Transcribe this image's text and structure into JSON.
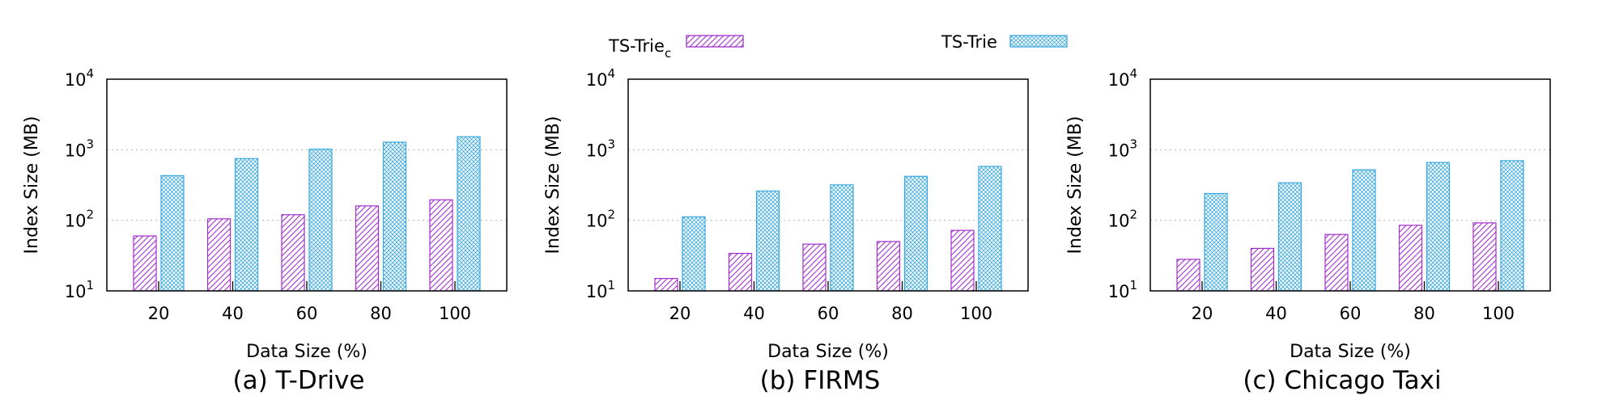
{
  "legend": {
    "items": [
      {
        "label": "TS-Trie",
        "subscript": "c",
        "pattern": "hatch",
        "color": "#a02fce"
      },
      {
        "label": "TS-Trie",
        "subscript": "",
        "pattern": "crosshatch",
        "color": "#38a8e0"
      }
    ],
    "placement": "top-center"
  },
  "chart_data": [
    {
      "type": "bar",
      "caption": "(a) T-Drive",
      "xlabel": "Data Size (%)",
      "ylabel": "Index Size (MB)",
      "yscale": "log",
      "ylim": [
        10,
        10000
      ],
      "yticks": [
        {
          "value": 10,
          "base": "10",
          "exp": "1"
        },
        {
          "value": 100,
          "base": "10",
          "exp": "2"
        },
        {
          "value": 1000,
          "base": "10",
          "exp": "3"
        },
        {
          "value": 10000,
          "base": "10",
          "exp": "4"
        }
      ],
      "grid": "y",
      "categories": [
        "20",
        "40",
        "60",
        "80",
        "100"
      ],
      "series": [
        {
          "name": "TS-Triec",
          "values": [
            60,
            105,
            120,
            160,
            195
          ]
        },
        {
          "name": "TS-Trie",
          "values": [
            430,
            750,
            1020,
            1280,
            1530
          ]
        }
      ]
    },
    {
      "type": "bar",
      "caption": "(b) FIRMS",
      "xlabel": "Data Size (%)",
      "ylabel": "Index Size (MB)",
      "yscale": "log",
      "ylim": [
        10,
        10000
      ],
      "yticks": [
        {
          "value": 10,
          "base": "10",
          "exp": "1"
        },
        {
          "value": 100,
          "base": "10",
          "exp": "2"
        },
        {
          "value": 1000,
          "base": "10",
          "exp": "3"
        },
        {
          "value": 10000,
          "base": "10",
          "exp": "4"
        }
      ],
      "grid": "y",
      "categories": [
        "20",
        "40",
        "60",
        "80",
        "100"
      ],
      "series": [
        {
          "name": "TS-Triec",
          "values": [
            15,
            34,
            46,
            50,
            72
          ]
        },
        {
          "name": "TS-Trie",
          "values": [
            112,
            260,
            318,
            420,
            580
          ]
        }
      ]
    },
    {
      "type": "bar",
      "caption": "(c) Chicago Taxi",
      "xlabel": "Data Size (%)",
      "ylabel": "Index Size (MB)",
      "yscale": "log",
      "ylim": [
        10,
        10000
      ],
      "yticks": [
        {
          "value": 10,
          "base": "10",
          "exp": "1"
        },
        {
          "value": 100,
          "base": "10",
          "exp": "2"
        },
        {
          "value": 1000,
          "base": "10",
          "exp": "3"
        },
        {
          "value": 10000,
          "base": "10",
          "exp": "4"
        }
      ],
      "grid": "y",
      "categories": [
        "20",
        "40",
        "60",
        "80",
        "100"
      ],
      "series": [
        {
          "name": "TS-Triec",
          "values": [
            28,
            40,
            63,
            85,
            92
          ]
        },
        {
          "name": "TS-Trie",
          "values": [
            240,
            340,
            520,
            660,
            700
          ]
        }
      ]
    }
  ]
}
